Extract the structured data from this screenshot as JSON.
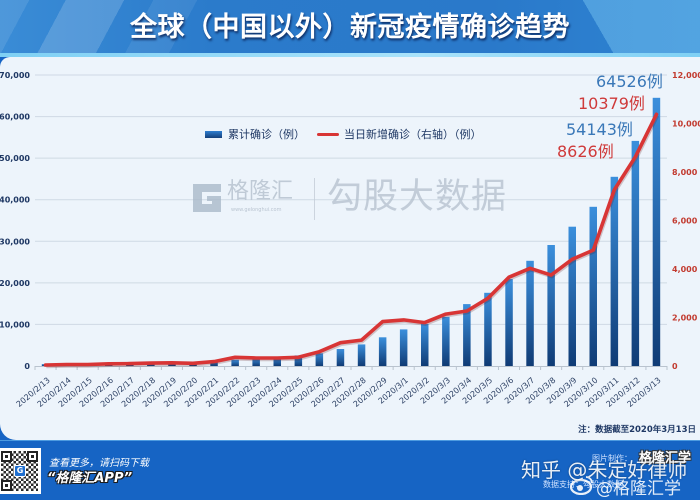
{
  "header": {
    "title": "全球（中国以外）新冠疫情确诊趋势"
  },
  "watermark": {
    "logo_icon": "gelonghui-logo-icon",
    "brand": "格隆汇",
    "brand_url": "www.gelonghui.com",
    "product": "勾股大数据"
  },
  "footer": {
    "qr_icon": "qr-code-icon",
    "qr_logo_letter": "G",
    "cta_line1": "查看更多，请扫码下载",
    "cta_line2": "“格隆汇APP”",
    "zhihu_watermark": "知乎 @朱定好律师",
    "credit_image_label": "图片制作：",
    "credit_image_value": "格隆汇学",
    "credit_data": "数据支持：勾股大数据",
    "weibo_icon": "weibo-icon",
    "weibo_handle": "@格隆汇学"
  },
  "colors": {
    "header_bg": "#2c7dcd",
    "panel_bg": "#edf4fb",
    "footer_bg": "#1664c4",
    "bar_top": "#3b8fdc",
    "bar_bottom": "#0f3b75",
    "line": "#d83535",
    "grid": "#cfd9e4",
    "left_axis_text": "#1f3864",
    "right_axis_text": "#c23b30",
    "x_axis_text": "#2b3f63",
    "annotation_blue": "#3a78b8",
    "annotation_red": "#cf3a3a"
  },
  "chart_data": {
    "type": "bar",
    "title": "全球（中国以外）新冠疫情确诊趋势",
    "xlabel": "",
    "ylabel": "",
    "categories": [
      "2020/2/13",
      "2020/2/14",
      "2020/2/15",
      "2020/2/16",
      "2020/2/17",
      "2020/2/18",
      "2020/2/19",
      "2020/2/20",
      "2020/2/21",
      "2020/2/22",
      "2020/2/23",
      "2020/2/24",
      "2020/2/25",
      "2020/2/26",
      "2020/2/27",
      "2020/2/28",
      "2020/2/29",
      "2020/3/1",
      "2020/3/2",
      "2020/3/3",
      "2020/3/4",
      "2020/3/5",
      "2020/3/6",
      "2020/3/7",
      "2020/3/8",
      "2020/3/9",
      "2020/3/10",
      "2020/3/11",
      "2020/3/12",
      "2020/3/13"
    ],
    "series": [
      {
        "name": "累计确诊（例）",
        "type": "bar",
        "axis": "left",
        "values": [
          450,
          500,
          560,
          640,
          720,
          800,
          900,
          1000,
          1150,
          1500,
          1850,
          2200,
          2550,
          3050,
          4100,
          5200,
          6900,
          8800,
          10100,
          11800,
          14900,
          17600,
          20900,
          25300,
          29100,
          33500,
          38300,
          45500,
          54143,
          64526
        ]
      },
      {
        "name": "当日新增确诊（右轴）（例）",
        "type": "line",
        "axis": "right",
        "values": [
          40,
          60,
          60,
          90,
          100,
          120,
          130,
          110,
          180,
          360,
          330,
          330,
          360,
          590,
          960,
          1070,
          1830,
          1900,
          1790,
          2140,
          2270,
          2790,
          3660,
          4030,
          3750,
          4400,
          4780,
          7260,
          8626,
          10379
        ]
      }
    ],
    "y_left": {
      "min": 0,
      "max": 70000,
      "step": 10000,
      "ticks": [
        "0",
        "10,000",
        "20,000",
        "30,000",
        "40,000",
        "50,000",
        "60,000",
        "70,000"
      ]
    },
    "y_right": {
      "min": 0,
      "max": 12000,
      "step": 2000,
      "ticks": [
        "0",
        "2,000",
        "4,000",
        "6,000",
        "8,000",
        "10,000",
        "12,000"
      ]
    },
    "ylim": [
      0,
      70000
    ],
    "ylim_right": [
      0,
      12000
    ],
    "grid": true,
    "legend_position": "top-center",
    "annotations": [
      {
        "category": "2020/3/13",
        "series": "累计确诊（例）",
        "text": "64526例"
      },
      {
        "category": "2020/3/13",
        "series": "当日新增确诊（右轴）（例）",
        "text": "10379例"
      },
      {
        "category": "2020/3/12",
        "series": "累计确诊（例）",
        "text": "54143例"
      },
      {
        "category": "2020/3/12",
        "series": "当日新增确诊（右轴）（例）",
        "text": "8626例"
      }
    ],
    "note": "注：数据截至2020年3月13日"
  }
}
